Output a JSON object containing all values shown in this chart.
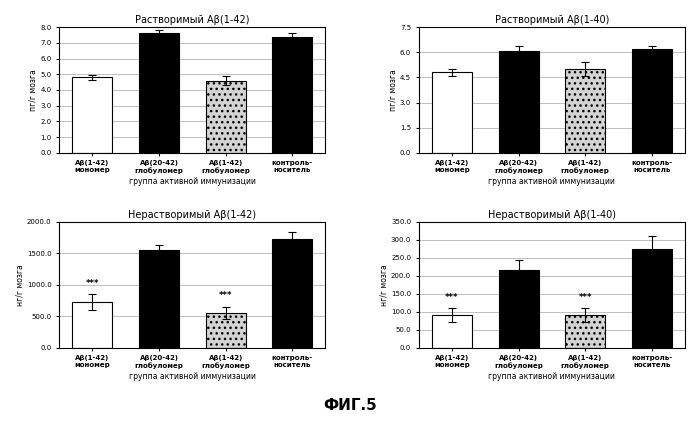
{
  "plots": [
    {
      "title": "Растворимый Aβ(1-42)",
      "ylabel": "пг/г мозга",
      "xlabel": "группа активной иммунизации",
      "ylim": [
        0,
        8.0
      ],
      "yticks": [
        0.0,
        1.0,
        2.0,
        3.0,
        4.0,
        5.0,
        6.0,
        7.0,
        8.0
      ],
      "values": [
        4.8,
        7.6,
        4.6,
        7.4
      ],
      "errors": [
        0.15,
        0.2,
        0.3,
        0.25
      ],
      "bar_colors": [
        "white",
        "black",
        "lightgray",
        "black"
      ],
      "bar_hatches": [
        null,
        null,
        "...",
        null
      ],
      "significance": [
        null,
        null,
        null,
        null
      ],
      "categories": [
        "Аβ(1-42)\nмономер",
        "Аβ(20-42)\nглобуломер",
        "Аβ(1-42)\nглобуломер",
        "контроль-\nноситель"
      ]
    },
    {
      "title": "Растворимый Aβ(1-40)",
      "ylabel": "пг/г мозга",
      "xlabel": "группа активной иммунизации",
      "ylim": [
        0,
        7.5
      ],
      "yticks": [
        0.0,
        1.5,
        3.0,
        4.5,
        6.0,
        7.5
      ],
      "values": [
        4.8,
        6.1,
        5.0,
        6.2
      ],
      "errors": [
        0.2,
        0.25,
        0.4,
        0.2
      ],
      "bar_colors": [
        "white",
        "black",
        "lightgray",
        "black"
      ],
      "bar_hatches": [
        null,
        null,
        "...",
        null
      ],
      "significance": [
        null,
        null,
        null,
        null
      ],
      "categories": [
        "Аβ(1-42)\nмономер",
        "Аβ(20-42)\nглобуломер",
        "Аβ(1-42)\nглобуломер",
        "контроль-\nноситель"
      ]
    },
    {
      "title": "Нерастворимый Aβ(1-42)",
      "ylabel": "нг/г мозга",
      "xlabel": "группа активной иммунизации",
      "ylim": [
        0,
        2000
      ],
      "yticks": [
        0.0,
        500.0,
        1000.0,
        1500.0,
        2000.0
      ],
      "values": [
        720,
        1560,
        550,
        1720
      ],
      "errors": [
        130,
        80,
        100,
        120
      ],
      "bar_colors": [
        "white",
        "black",
        "lightgray",
        "black"
      ],
      "bar_hatches": [
        null,
        null,
        "...",
        null
      ],
      "significance": [
        "***",
        null,
        "***",
        null
      ],
      "categories": [
        "Аβ(1-42)\nмономер",
        "Аβ(20-42)\nглобуломер",
        "Аβ(1-42)\nглобуломер",
        "контроль-\nноситель"
      ]
    },
    {
      "title": "Нерастворимый Aβ(1-40)",
      "ylabel": "нг/г мозга",
      "xlabel": "группа активной иммунизации",
      "ylim": [
        0,
        350
      ],
      "yticks": [
        0.0,
        50.0,
        100.0,
        150.0,
        200.0,
        250.0,
        300.0,
        350.0
      ],
      "values": [
        90,
        215,
        90,
        275
      ],
      "errors": [
        20,
        30,
        20,
        35
      ],
      "bar_colors": [
        "white",
        "black",
        "lightgray",
        "black"
      ],
      "bar_hatches": [
        null,
        null,
        "...",
        null
      ],
      "significance": [
        "***",
        null,
        "***",
        null
      ],
      "categories": [
        "Аβ(1-42)\nмономер",
        "Аβ(20-42)\nглобуломер",
        "Аβ(1-42)\nглобуломер",
        "контроль-\nноситель"
      ]
    }
  ],
  "figure_title": "ФИГ.5",
  "background_color": "white"
}
